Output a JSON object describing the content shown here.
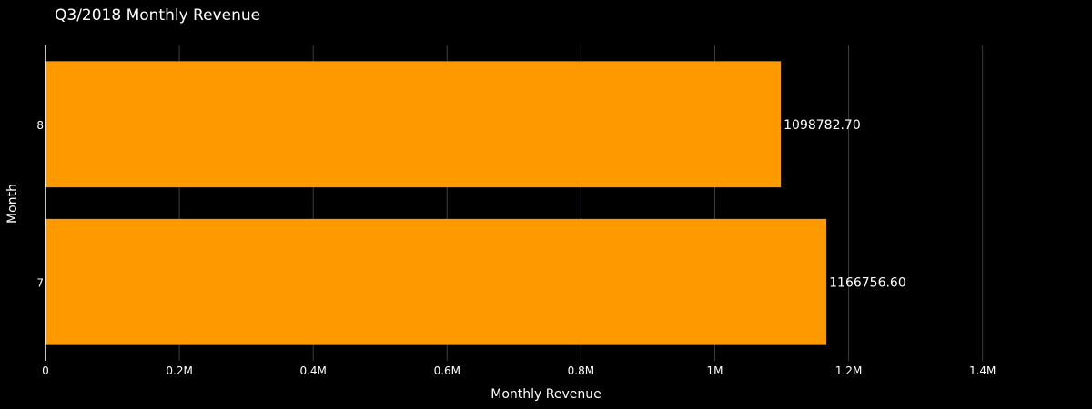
{
  "chart_data": {
    "type": "bar",
    "orientation": "horizontal",
    "title": "Q3/2018 Monthly Revenue",
    "xlabel": "Monthly Revenue",
    "ylabel": "Month",
    "categories": [
      "7",
      "8"
    ],
    "values": [
      1166756.6,
      1098782.7
    ],
    "data_labels": [
      "1166756.60",
      "1098782.70"
    ],
    "xlim": [
      0,
      1550000
    ],
    "x_ticks": [
      {
        "value": 0,
        "label": "0"
      },
      {
        "value": 200000,
        "label": "0.2M"
      },
      {
        "value": 400000,
        "label": "0.4M"
      },
      {
        "value": 600000,
        "label": "0.6M"
      },
      {
        "value": 800000,
        "label": "0.8M"
      },
      {
        "value": 1000000,
        "label": "1M"
      },
      {
        "value": 1200000,
        "label": "1.2M"
      },
      {
        "value": 1400000,
        "label": "1.4M"
      }
    ],
    "grid": true,
    "legend": "none",
    "colors": {
      "bar": "#ff9900",
      "background": "#000000",
      "grid": "#3a3f44",
      "text": "#ffffff"
    }
  }
}
